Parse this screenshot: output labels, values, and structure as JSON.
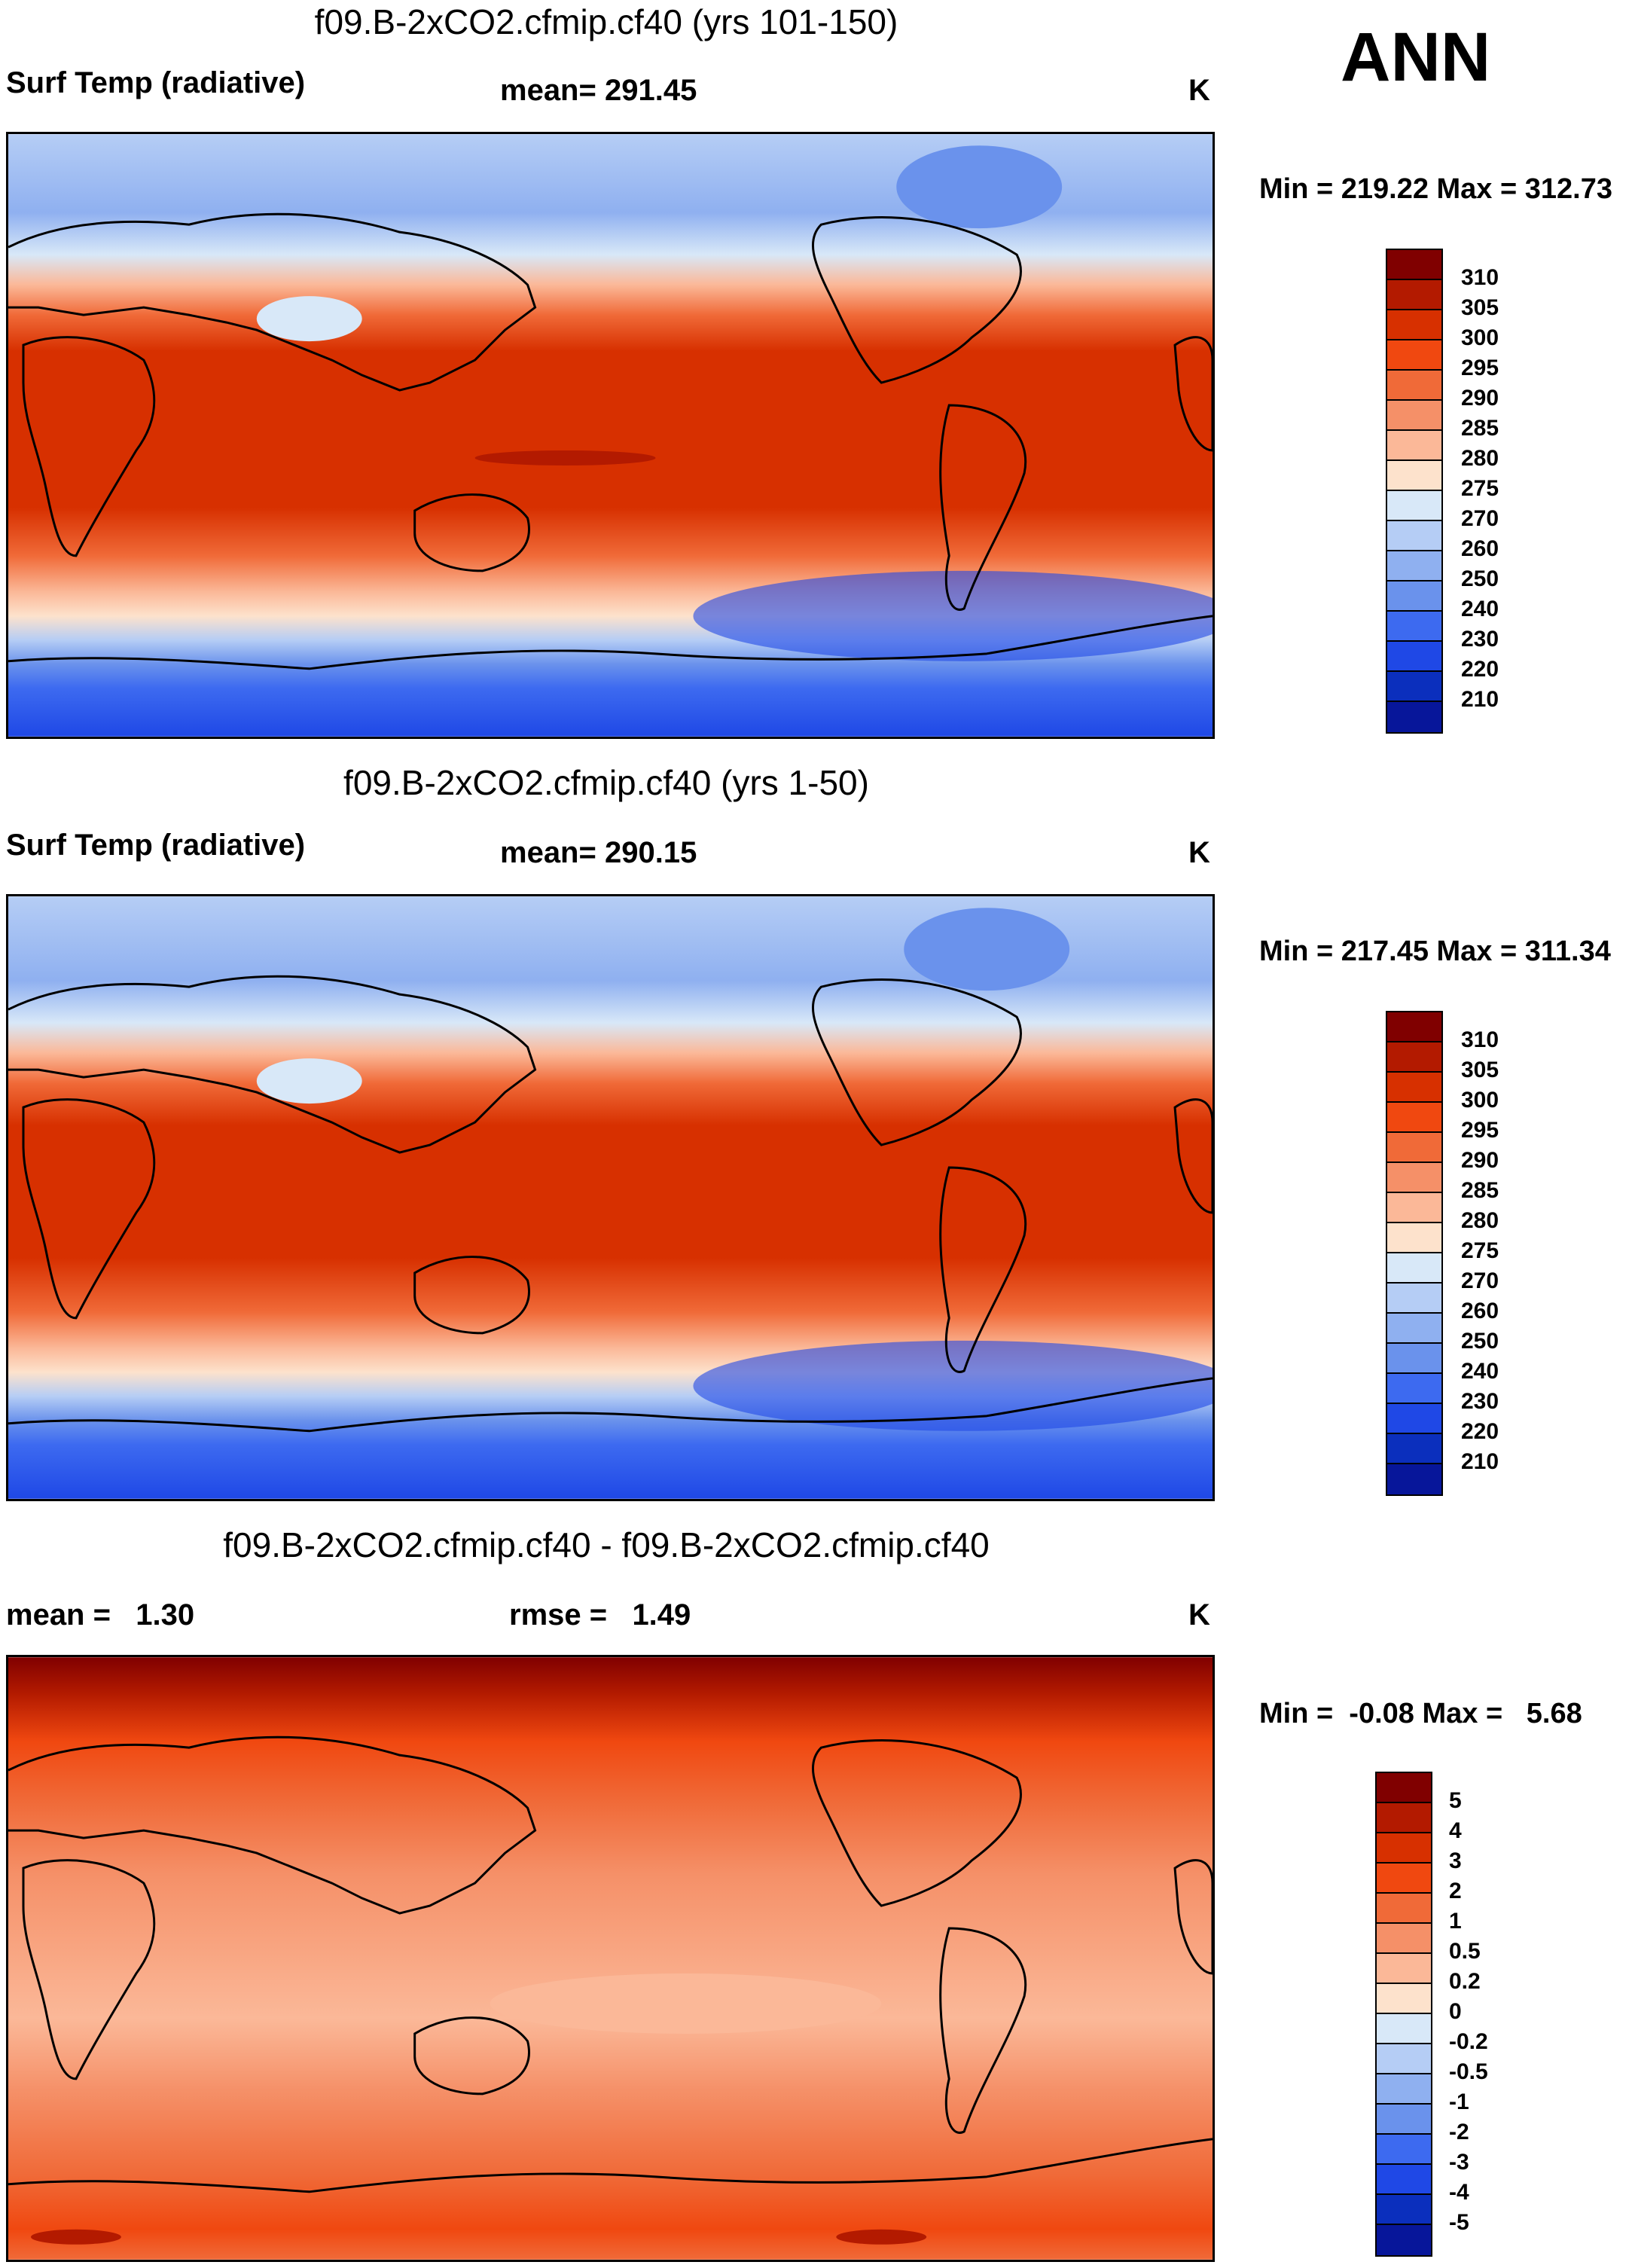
{
  "season": "ANN",
  "panels": [
    {
      "title": "f09.B-2xCO2.cfmip.cf40 (yrs 101-150)",
      "variable": "Surf Temp (radiative)",
      "mean_label": "mean= 291.45",
      "units": "K",
      "minmax": "Min = 219.22 Max = 312.73",
      "colorbar": {
        "colors": [
          "#800000",
          "#b31a00",
          "#d73000",
          "#f04810",
          "#f06a38",
          "#f59068",
          "#fbb898",
          "#fde2cc",
          "#d8e8f8",
          "#b5cdf5",
          "#8fb0f0",
          "#6a92ec",
          "#3d6af0",
          "#1f48e6",
          "#0b2fbd",
          "#07169a",
          "#000080"
        ],
        "labels": [
          "310",
          "305",
          "300",
          "295",
          "290",
          "285",
          "280",
          "275",
          "270",
          "260",
          "250",
          "240",
          "230",
          "220",
          "210"
        ]
      }
    },
    {
      "title": "f09.B-2xCO2.cfmip.cf40 (yrs 1-50)",
      "variable": "Surf Temp (radiative)",
      "mean_label": "mean= 290.15",
      "units": "K",
      "minmax": "Min = 217.45 Max = 311.34",
      "colorbar": {
        "colors": [
          "#800000",
          "#b31a00",
          "#d73000",
          "#f04810",
          "#f06a38",
          "#f59068",
          "#fbb898",
          "#fde2cc",
          "#d8e8f8",
          "#b5cdf5",
          "#8fb0f0",
          "#6a92ec",
          "#3d6af0",
          "#1f48e6",
          "#0b2fbd",
          "#07169a",
          "#000080"
        ],
        "labels": [
          "310",
          "305",
          "300",
          "295",
          "290",
          "285",
          "280",
          "275",
          "270",
          "260",
          "250",
          "240",
          "230",
          "220",
          "210"
        ]
      }
    },
    {
      "title": "f09.B-2xCO2.cfmip.cf40 - f09.B-2xCO2.cfmip.cf40",
      "mean_label": "mean =   1.30",
      "rmse_label": "rmse =   1.49",
      "units": "K",
      "minmax": "Min =  -0.08 Max =   5.68",
      "colorbar": {
        "colors": [
          "#800000",
          "#b31a00",
          "#d73000",
          "#f04810",
          "#f06a38",
          "#f59068",
          "#fbb898",
          "#fde2cc",
          "#d8e8f8",
          "#b5cdf5",
          "#8fb0f0",
          "#6a92ec",
          "#3d6af0",
          "#1f48e6",
          "#0b2fbd",
          "#07169a",
          "#000080"
        ],
        "labels": [
          "5",
          "4",
          "3",
          "2",
          "1",
          "0.5",
          "0.2",
          "0",
          "-0.2",
          "-0.5",
          "-1",
          "-2",
          "-3",
          "-4",
          "-5"
        ]
      }
    }
  ]
}
